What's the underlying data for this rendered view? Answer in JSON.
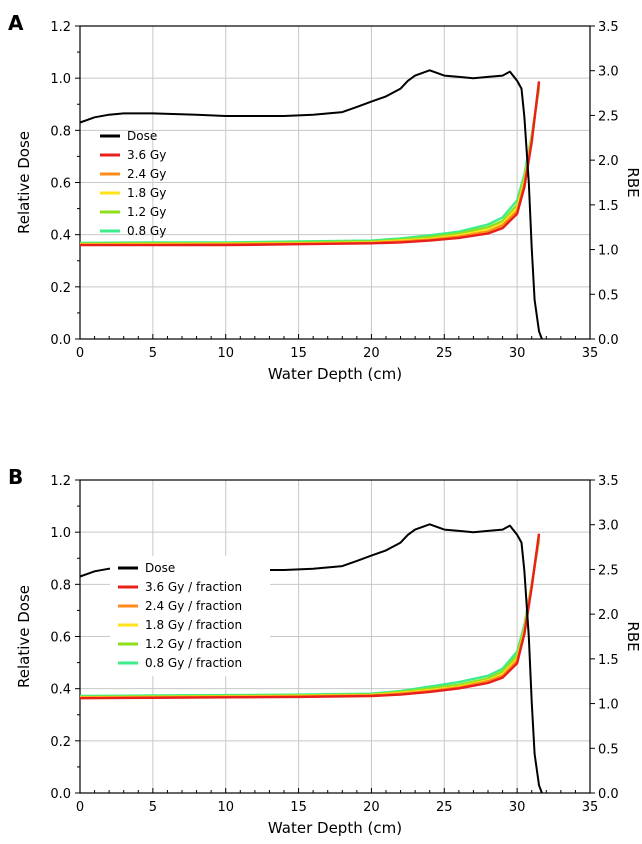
{
  "chart_data": [
    {
      "type": "line",
      "panel": "A",
      "xlabel": "Water Depth (cm)",
      "ylabel": "Relative Dose",
      "y2label": "RBE",
      "xlim": [
        0,
        35
      ],
      "ylim": [
        0,
        1.2
      ],
      "y2lim": [
        0,
        3.5
      ],
      "xticks": [
        "0",
        "5",
        "10",
        "15",
        "20",
        "25",
        "30",
        "35"
      ],
      "yticks": [
        "0.0",
        "0.2",
        "0.4",
        "0.6",
        "0.8",
        "1.0",
        "1.2"
      ],
      "y2ticks": [
        "0.0",
        "0.5",
        "1.0",
        "1.5",
        "2.0",
        "2.5",
        "3.0",
        "3.5"
      ],
      "grid": true,
      "legend_position": "upper-left",
      "series": [
        {
          "name": "Dose",
          "color": "#000000",
          "axis": "left",
          "x": [
            0,
            0.5,
            1,
            2,
            3,
            5,
            8,
            10,
            12,
            14,
            16,
            18,
            19,
            20,
            21,
            22,
            22.5,
            23,
            24,
            25,
            26,
            27,
            28,
            29,
            29.5,
            30,
            30.3,
            30.5,
            30.8,
            31.0,
            31.2,
            31.5,
            31.7
          ],
          "y": [
            0.83,
            0.84,
            0.85,
            0.86,
            0.865,
            0.865,
            0.86,
            0.855,
            0.855,
            0.855,
            0.86,
            0.87,
            0.89,
            0.91,
            0.93,
            0.96,
            0.99,
            1.01,
            1.03,
            1.01,
            1.005,
            1.0,
            1.005,
            1.01,
            1.025,
            0.99,
            0.96,
            0.85,
            0.6,
            0.35,
            0.15,
            0.03,
            0.0
          ]
        },
        {
          "name": "3.6 Gy",
          "color": "#e8201c",
          "axis": "right",
          "x": [
            0,
            5,
            10,
            15,
            20,
            22,
            24,
            26,
            28,
            29,
            30,
            30.5,
            31,
            31.5
          ],
          "y": [
            1.05,
            1.05,
            1.05,
            1.06,
            1.07,
            1.08,
            1.1,
            1.13,
            1.18,
            1.24,
            1.4,
            1.7,
            2.2,
            2.88
          ]
        },
        {
          "name": "2.4 Gy",
          "color": "#ff8c1a",
          "axis": "right",
          "x": [
            0,
            5,
            10,
            15,
            20,
            22,
            24,
            26,
            28,
            29,
            30,
            30.5,
            31,
            31.5
          ],
          "y": [
            1.055,
            1.055,
            1.06,
            1.065,
            1.075,
            1.09,
            1.11,
            1.145,
            1.2,
            1.27,
            1.43,
            1.73,
            2.22,
            2.86
          ]
        },
        {
          "name": "1.8 Gy",
          "color": "#ffe21a",
          "axis": "right",
          "x": [
            0,
            5,
            10,
            15,
            20,
            22,
            24,
            26,
            28,
            29,
            30,
            30.5,
            31,
            31.5
          ],
          "y": [
            1.06,
            1.06,
            1.065,
            1.07,
            1.08,
            1.1,
            1.12,
            1.16,
            1.22,
            1.29,
            1.46,
            1.76,
            2.24,
            2.84
          ]
        },
        {
          "name": "1.2 Gy",
          "color": "#8fe01a",
          "axis": "right",
          "x": [
            0,
            5,
            10,
            15,
            20,
            22,
            24,
            26,
            28,
            29,
            30,
            30.5,
            31,
            31.5
          ],
          "y": [
            1.065,
            1.07,
            1.07,
            1.08,
            1.09,
            1.11,
            1.14,
            1.18,
            1.25,
            1.32,
            1.5,
            1.8,
            2.26,
            2.82
          ]
        },
        {
          "name": "0.8 Gy",
          "color": "#3ded8c",
          "axis": "right",
          "x": [
            0,
            5,
            10,
            15,
            20,
            22,
            24,
            26,
            28,
            29,
            30,
            30.5,
            31,
            31.5
          ],
          "y": [
            1.075,
            1.08,
            1.08,
            1.09,
            1.1,
            1.125,
            1.16,
            1.2,
            1.28,
            1.36,
            1.55,
            1.84,
            2.28,
            2.8
          ]
        }
      ]
    },
    {
      "type": "line",
      "panel": "B",
      "xlabel": "Water Depth (cm)",
      "ylabel": "Relative Dose",
      "y2label": "RBE",
      "xlim": [
        0,
        35
      ],
      "ylim": [
        0,
        1.2
      ],
      "y2lim": [
        0,
        3.5
      ],
      "xticks": [
        "0",
        "5",
        "10",
        "15",
        "20",
        "25",
        "30",
        "35"
      ],
      "yticks": [
        "0.0",
        "0.2",
        "0.4",
        "0.6",
        "0.8",
        "1.0",
        "1.2"
      ],
      "y2ticks": [
        "0.0",
        "0.5",
        "1.0",
        "1.5",
        "2.0",
        "2.5",
        "3.0",
        "3.5"
      ],
      "grid": true,
      "legend_position": "upper-left",
      "series": [
        {
          "name": "Dose",
          "color": "#000000",
          "axis": "left",
          "x": [
            0,
            0.5,
            1,
            2,
            3,
            5,
            8,
            10,
            12,
            14,
            16,
            18,
            19,
            20,
            21,
            22,
            22.5,
            23,
            24,
            25,
            26,
            27,
            28,
            29,
            29.5,
            30,
            30.3,
            30.5,
            30.8,
            31.0,
            31.2,
            31.5,
            31.7
          ],
          "y": [
            0.83,
            0.84,
            0.85,
            0.86,
            0.865,
            0.865,
            0.86,
            0.855,
            0.855,
            0.855,
            0.86,
            0.87,
            0.89,
            0.91,
            0.93,
            0.96,
            0.99,
            1.01,
            1.03,
            1.01,
            1.005,
            1.0,
            1.005,
            1.01,
            1.025,
            0.99,
            0.96,
            0.85,
            0.6,
            0.35,
            0.15,
            0.03,
            0.0
          ]
        },
        {
          "name": "3.6 Gy / fraction",
          "color": "#e8201c",
          "axis": "right",
          "x": [
            0,
            5,
            10,
            15,
            20,
            22,
            24,
            26,
            28,
            29,
            30,
            30.5,
            31,
            31.5
          ],
          "y": [
            1.06,
            1.065,
            1.07,
            1.075,
            1.085,
            1.1,
            1.13,
            1.17,
            1.23,
            1.29,
            1.45,
            1.78,
            2.3,
            2.9
          ]
        },
        {
          "name": "2.4 Gy / fraction",
          "color": "#ff8c1a",
          "axis": "right",
          "x": [
            0,
            5,
            10,
            15,
            20,
            22,
            24,
            26,
            28,
            29,
            30,
            30.5,
            31,
            31.5
          ],
          "y": [
            1.065,
            1.07,
            1.075,
            1.08,
            1.09,
            1.11,
            1.14,
            1.18,
            1.25,
            1.31,
            1.48,
            1.8,
            2.31,
            2.88
          ]
        },
        {
          "name": "1.8 Gy / fraction",
          "color": "#ffe21a",
          "axis": "right",
          "x": [
            0,
            5,
            10,
            15,
            20,
            22,
            24,
            26,
            28,
            29,
            30,
            30.5,
            31,
            31.5
          ],
          "y": [
            1.07,
            1.075,
            1.08,
            1.085,
            1.095,
            1.12,
            1.15,
            1.19,
            1.26,
            1.33,
            1.5,
            1.82,
            2.32,
            2.86
          ]
        },
        {
          "name": "1.2 Gy / fraction",
          "color": "#8fe01a",
          "axis": "right",
          "x": [
            0,
            5,
            10,
            15,
            20,
            22,
            24,
            26,
            28,
            29,
            30,
            30.5,
            31,
            31.5
          ],
          "y": [
            1.075,
            1.08,
            1.085,
            1.09,
            1.1,
            1.13,
            1.17,
            1.21,
            1.28,
            1.36,
            1.54,
            1.85,
            2.33,
            2.84
          ]
        },
        {
          "name": "0.8 Gy / fraction",
          "color": "#3ded8c",
          "axis": "right",
          "x": [
            0,
            5,
            10,
            15,
            20,
            22,
            24,
            26,
            28,
            29,
            30,
            30.5,
            31,
            31.5
          ],
          "y": [
            1.085,
            1.09,
            1.095,
            1.1,
            1.11,
            1.14,
            1.19,
            1.24,
            1.31,
            1.39,
            1.58,
            1.88,
            2.34,
            2.82
          ]
        }
      ]
    }
  ]
}
